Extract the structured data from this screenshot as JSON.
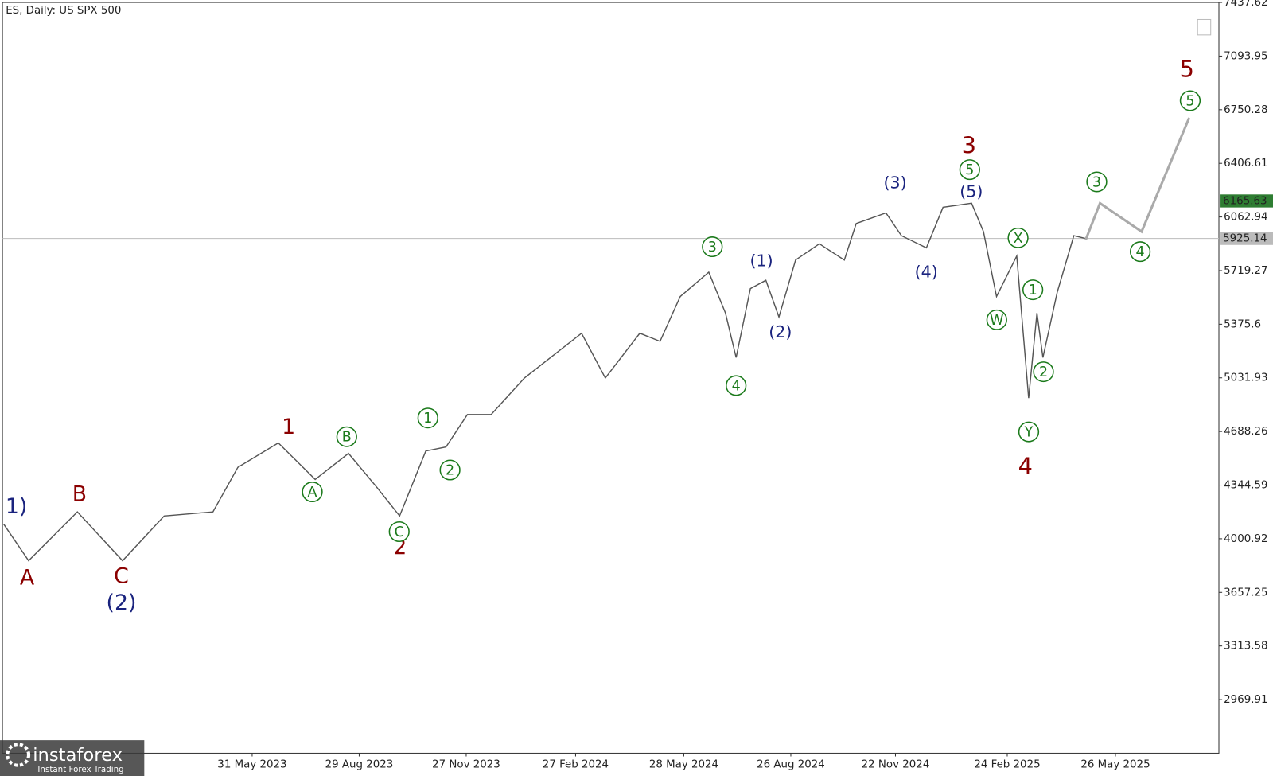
{
  "chart_data": {
    "type": "line",
    "title": "ES, Daily:  US SPX 500",
    "xlim": [
      -210,
      813
    ],
    "xticks": [
      {
        "value": 0,
        "label": "31 May 2023"
      },
      {
        "value": 90,
        "label": "29 Aug 2023"
      },
      {
        "value": 180,
        "label": "27 Nov 2023"
      },
      {
        "value": 272,
        "label": "27 Feb 2024"
      },
      {
        "value": 363,
        "label": "28 May 2024"
      },
      {
        "value": 453,
        "label": "26 Aug 2024"
      },
      {
        "value": 541,
        "label": "22 Nov 2024"
      },
      {
        "value": 635,
        "label": "24 Feb 2025"
      },
      {
        "value": 726,
        "label": "26 May 2025"
      }
    ],
    "ylim": [
      2626.24,
      7437.62
    ],
    "yticks": [
      7437.62,
      7093.95,
      6750.28,
      6406.61,
      6062.94,
      5719.27,
      5375.6,
      5031.93,
      4688.26,
      4344.59,
      4000.92,
      3657.25,
      3313.58,
      2969.91
    ],
    "series": [
      {
        "color": "#555555",
        "x": [
          -209,
          -188,
          -147,
          -109,
          -74,
          -33,
          -12,
          22,
          53,
          81,
          105,
          124,
          146,
          163,
          181,
          201,
          229,
          277,
          297,
          326,
          343,
          360,
          384,
          398,
          407,
          419,
          432,
          443,
          457,
          477,
          498,
          508,
          533,
          546,
          567,
          581,
          605,
          615,
          626,
          643,
          653,
          660,
          665,
          677,
          691,
          701
        ],
        "values": [
          4095,
          3860,
          4173,
          3860,
          4147,
          4173,
          4459,
          4615,
          4381,
          4548,
          4329,
          4147,
          4563,
          4589,
          4797,
          4797,
          5031,
          5318,
          5031,
          5318,
          5266,
          5553,
          5709,
          5448,
          5162,
          5604,
          5657,
          5422,
          5787,
          5891,
          5787,
          6021,
          6089,
          5943,
          5865,
          6125,
          6151,
          5969,
          5553,
          5813,
          4902,
          5448,
          5162,
          5579,
          5943,
          5925
        ]
      },
      {
        "color": "#aaaaaa",
        "x": [
          701,
          713,
          748,
          788
        ],
        "values": [
          5917,
          6151,
          5969,
          6698
        ]
      }
    ],
    "levels": [
      {
        "value": 6165.63,
        "label": "6165.63",
        "color": "#2e7d32",
        "dashed": true
      },
      {
        "value": 5925.14,
        "label": "5925.14",
        "color": "#bbbbbb",
        "dashed": false
      }
    ],
    "wave_labels": [
      {
        "text": "A",
        "color": "#8b0000"
      },
      {
        "text": "B",
        "color": "#8b0000"
      },
      {
        "text": "C",
        "color": "#8b0000"
      },
      {
        "text": "1",
        "color": "#8b0000"
      },
      {
        "text": "2",
        "color": "#8b0000"
      },
      {
        "text": "3",
        "color": "#8b0000"
      },
      {
        "text": "4",
        "color": "#8b0000"
      },
      {
        "text": "5",
        "color": "#8b0000"
      },
      {
        "text": "1)",
        "color": "#1a237e"
      },
      {
        "text": "(2)",
        "color": "#1a237e"
      },
      {
        "text": "(3)",
        "color": "#1a237e"
      },
      {
        "text": "(5)",
        "color": "#1a237e"
      },
      {
        "text": "(1)",
        "color": "#1a237e"
      },
      {
        "text": "(2)",
        "color": "#1a237e"
      },
      {
        "text": "(4)",
        "color": "#1a237e"
      },
      {
        "text": "A",
        "color": "#1b7a1b",
        "circled": true
      },
      {
        "text": "B",
        "color": "#1b7a1b",
        "circled": true
      },
      {
        "text": "C",
        "color": "#1b7a1b",
        "circled": true
      },
      {
        "text": "1",
        "color": "#1b7a1b",
        "circled": true
      },
      {
        "text": "2",
        "color": "#1b7a1b",
        "circled": true
      },
      {
        "text": "3",
        "color": "#1b7a1b",
        "circled": true
      },
      {
        "text": "4",
        "color": "#1b7a1b",
        "circled": true
      },
      {
        "text": "5",
        "color": "#1b7a1b",
        "circled": true
      },
      {
        "text": "X",
        "color": "#1b7a1b",
        "circled": true
      },
      {
        "text": "W",
        "color": "#1b7a1b",
        "circled": true
      },
      {
        "text": "Y",
        "color": "#1b7a1b",
        "circled": true
      },
      {
        "text": "1",
        "color": "#1b7a1b",
        "circled": true
      },
      {
        "text": "2",
        "color": "#1b7a1b",
        "circled": true
      },
      {
        "text": "3",
        "color": "#1b7a1b",
        "circled": true
      },
      {
        "text": "4",
        "color": "#1b7a1b",
        "circled": true
      },
      {
        "text": "5",
        "color": "#1b7a1b",
        "circled": true
      }
    ],
    "logo": {
      "name": "instaforex",
      "tagline": "Instant Forex Trading"
    }
  }
}
